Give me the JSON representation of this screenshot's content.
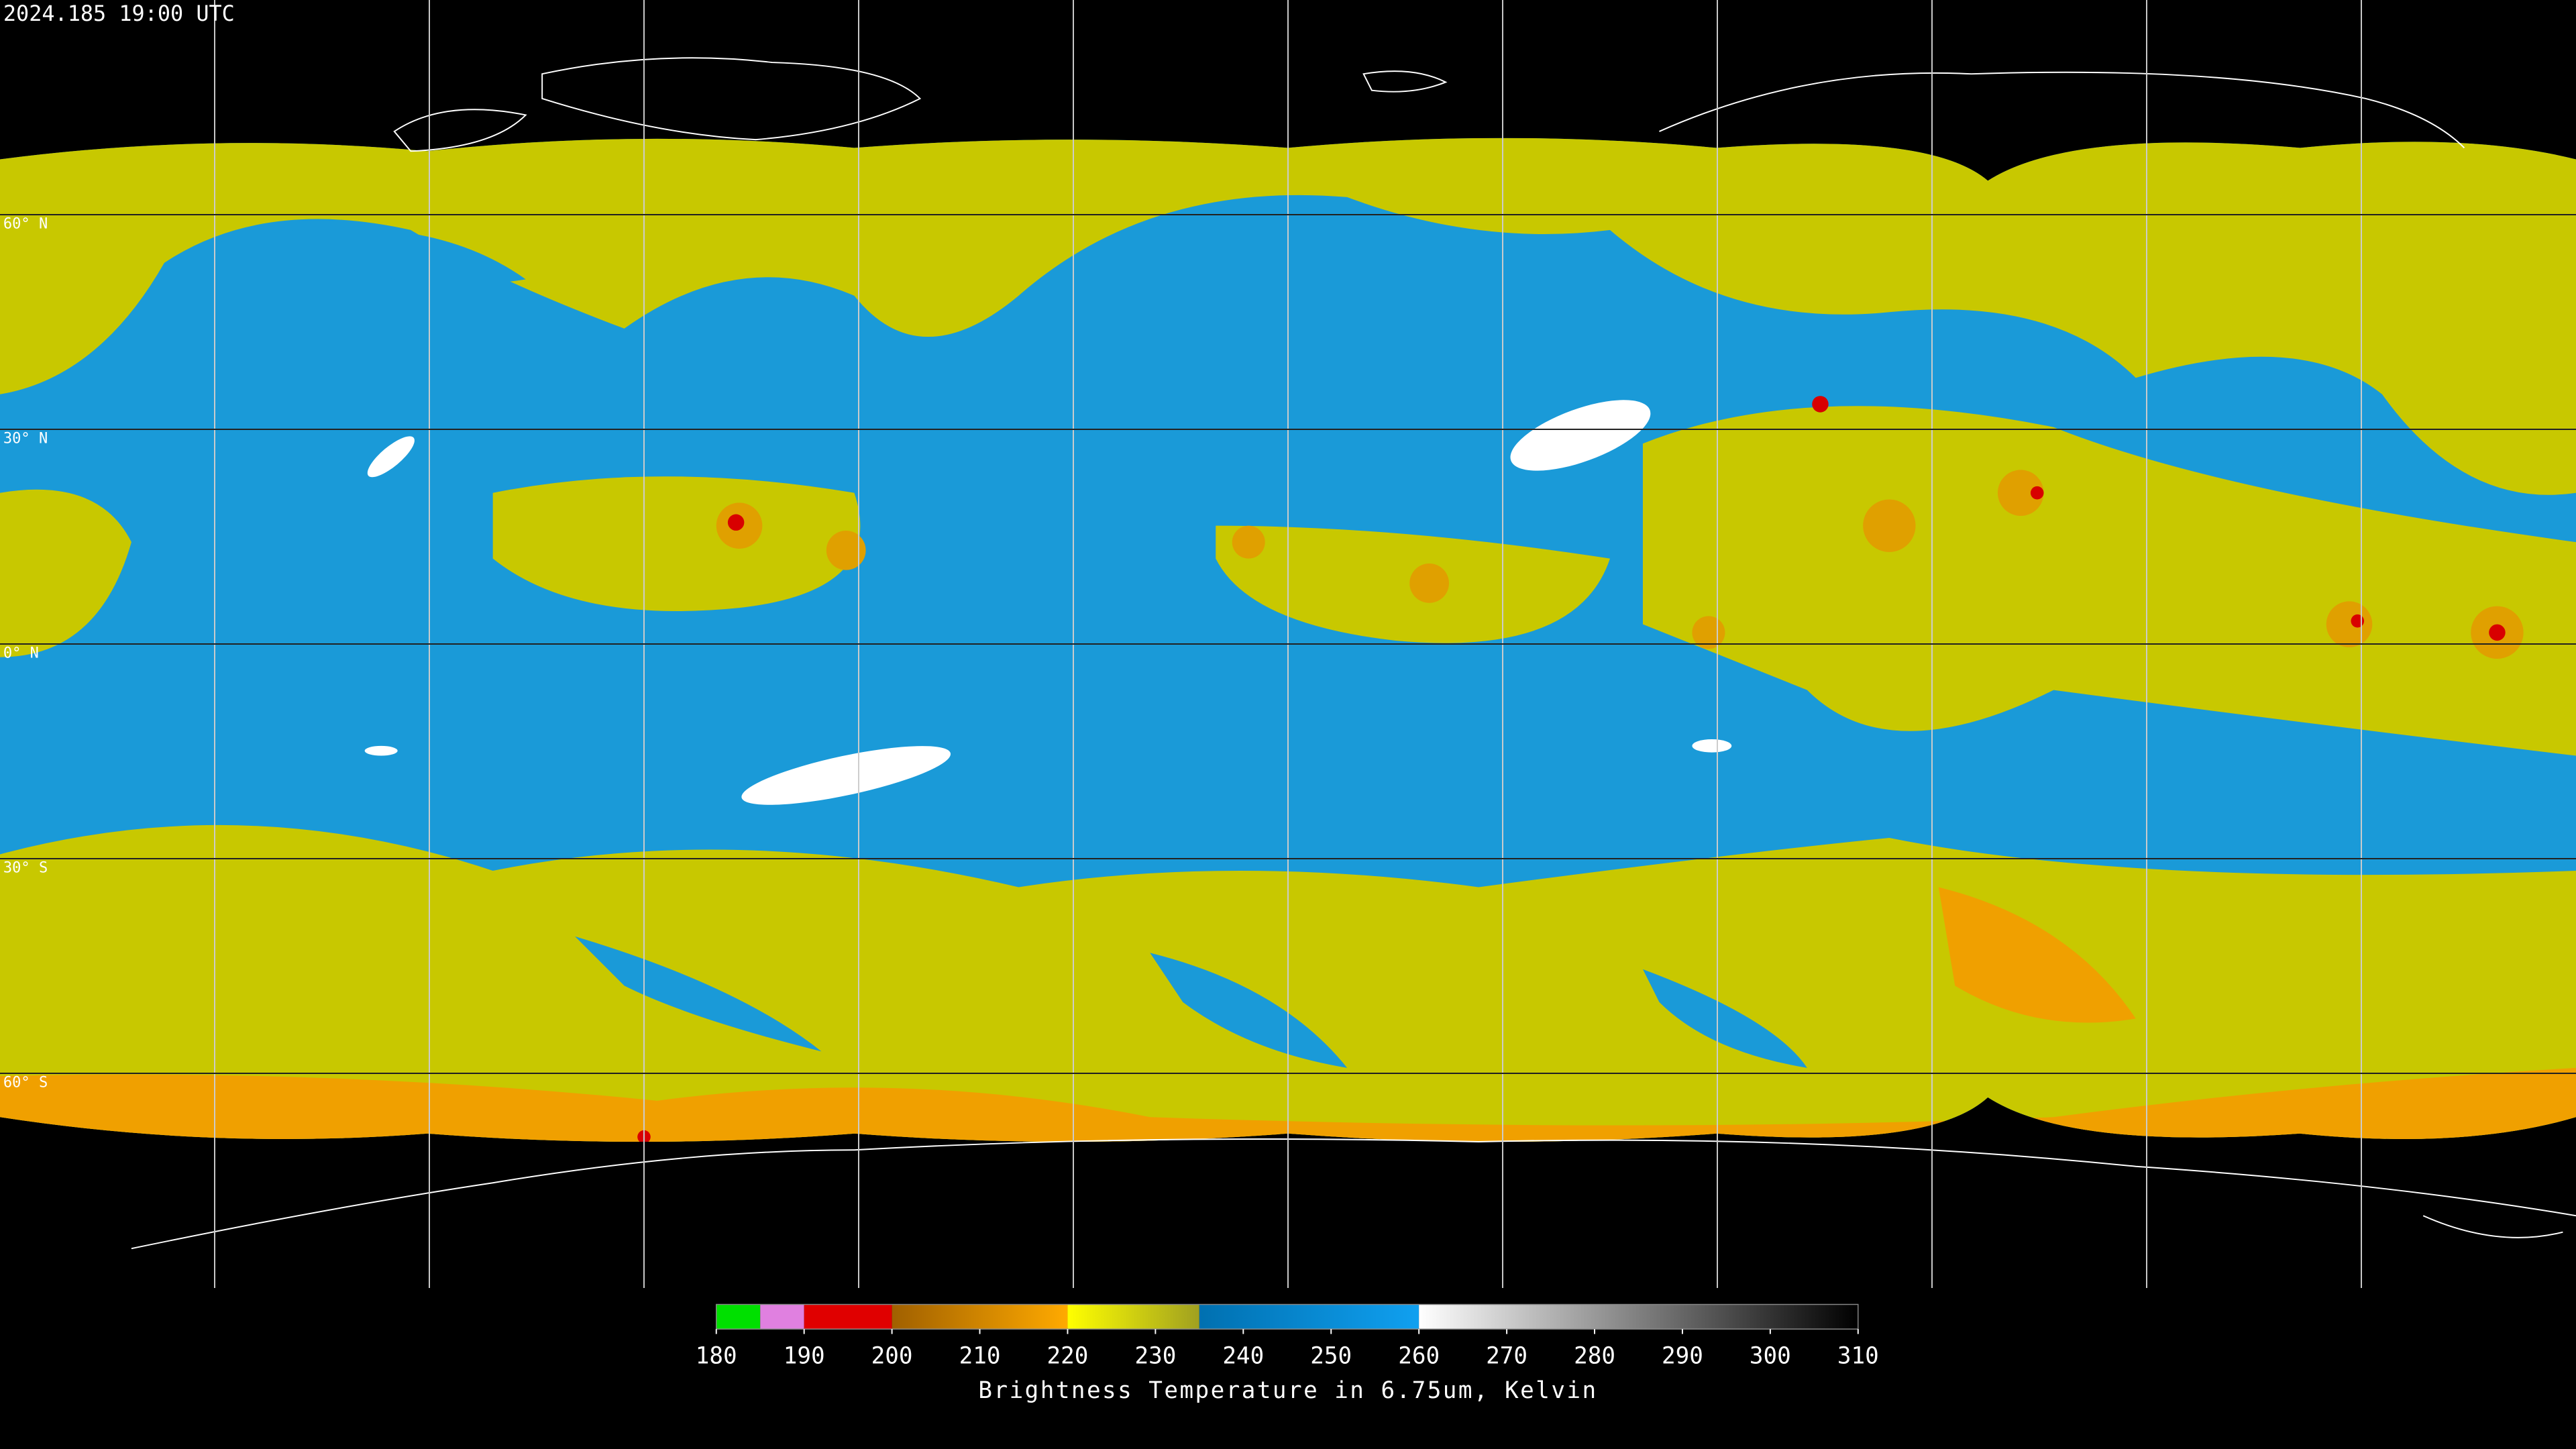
{
  "title": "2024.185 19:00 UTC",
  "latitudes": [
    {
      "value": 60,
      "label": "60° N"
    },
    {
      "value": 30,
      "label": "30° N"
    },
    {
      "value": 0,
      "label": "0° N"
    },
    {
      "value": -30,
      "label": "30° S"
    },
    {
      "value": -60,
      "label": "60° S"
    }
  ],
  "colorbar": {
    "label": "Brightness Temperature in 6.75um, Kelvin",
    "xlim": [
      180,
      310
    ],
    "xticks": [
      180,
      190,
      200,
      210,
      220,
      230,
      240,
      250,
      260,
      270,
      280,
      290,
      300,
      310
    ],
    "segments": [
      {
        "from": 180,
        "to": 185,
        "colors": [
          "#00e000",
          "#00e000"
        ]
      },
      {
        "from": 185,
        "to": 190,
        "colors": [
          "#e080e0",
          "#e080e0"
        ]
      },
      {
        "from": 190,
        "to": 200,
        "colors": [
          "#e00000",
          "#e00000"
        ]
      },
      {
        "from": 200,
        "to": 220,
        "colors": [
          "#a06000",
          "#ffaa00"
        ]
      },
      {
        "from": 220,
        "to": 235,
        "colors": [
          "#ffff00",
          "#a0a020"
        ]
      },
      {
        "from": 235,
        "to": 260,
        "colors": [
          "#0070b0",
          "#10a0f0"
        ]
      },
      {
        "from": 260,
        "to": 310,
        "colors": [
          "#ffffff",
          "#000000"
        ]
      }
    ]
  }
}
